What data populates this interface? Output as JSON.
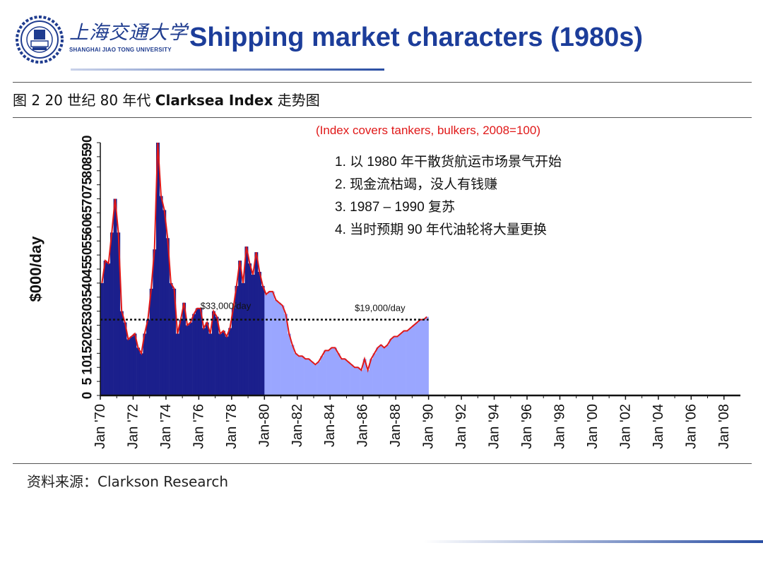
{
  "header": {
    "university_cn": "上海交通大学",
    "university_en": "SHANGHAI JIAO TONG UNIVERSITY",
    "title": "Shipping market characters (1980s)"
  },
  "figure": {
    "caption_prefix": "图 2 20 世纪 80 年代 ",
    "caption_bold": "Clarksea Index",
    "caption_suffix": " 走势图",
    "source": "资料来源：Clarkson Research"
  },
  "chart_data": {
    "type": "bar",
    "subtitle": "(Index covers tankers, bulkers, 2008=100)",
    "ylabel": "$000/day",
    "ylim": [
      0,
      90
    ],
    "yticks": [
      0,
      5,
      10,
      15,
      20,
      25,
      30,
      35,
      40,
      45,
      50,
      55,
      60,
      65,
      70,
      75,
      80,
      85,
      90
    ],
    "xlim": [
      1970,
      2009
    ],
    "xtick_labels": [
      "Jan '70",
      "Jan '72",
      "Jan '74",
      "Jan '76",
      "Jan '78",
      "Jan-80",
      "Jan-82",
      "Jan-84",
      "Jan-86",
      "Jan-88",
      "Jan '90",
      "Jan '92",
      "Jan '94",
      "Jan '96",
      "Jan '98",
      "Jan '00",
      "Jan '02",
      "Jan '04",
      "Jan '06",
      "Jan '08"
    ],
    "xtick_years": [
      1970,
      1972,
      1974,
      1976,
      1978,
      1980,
      1982,
      1984,
      1986,
      1988,
      1990,
      1992,
      1994,
      1996,
      1998,
      2000,
      2002,
      2004,
      2006,
      2008
    ],
    "reference_value": 27,
    "reference_labels": [
      "$33,000/day",
      "$19,000/day"
    ],
    "series": [
      {
        "color": "#1b1f8c",
        "x": [
          1970.0,
          1970.2,
          1970.4,
          1970.6,
          1970.8,
          1971.0,
          1971.2,
          1971.4,
          1971.6,
          1971.8,
          1972.0,
          1972.2,
          1972.4,
          1972.6,
          1972.8,
          1973.0,
          1973.2,
          1973.4,
          1973.6,
          1973.8,
          1974.0,
          1974.2,
          1974.4,
          1974.6,
          1974.8,
          1975.0,
          1975.2,
          1975.4,
          1975.6,
          1975.8,
          1976.0,
          1976.2,
          1976.4,
          1976.6,
          1976.8,
          1977.0,
          1977.2,
          1977.4,
          1977.6,
          1977.8,
          1978.0,
          1978.2,
          1978.4,
          1978.6,
          1978.8,
          1979.0,
          1979.2,
          1979.4,
          1979.6,
          1979.8
        ],
        "values": [
          40,
          48,
          47,
          58,
          70,
          58,
          30,
          26,
          20,
          21,
          22,
          17,
          15,
          22,
          27,
          38,
          52,
          90,
          71,
          66,
          56,
          40,
          38,
          22,
          27,
          33,
          25,
          26,
          29,
          31,
          31,
          24,
          26,
          22,
          30,
          28,
          22,
          23,
          21,
          24,
          31,
          39,
          48,
          40,
          53,
          47,
          43,
          51,
          44,
          39
        ]
      },
      {
        "color": "#9aa6ff",
        "x": [
          1980.0,
          1980.2,
          1980.4,
          1980.6,
          1980.8,
          1981.0,
          1981.2,
          1981.4,
          1981.6,
          1981.8,
          1982.0,
          1982.2,
          1982.4,
          1982.6,
          1982.8,
          1983.0,
          1983.2,
          1983.4,
          1983.6,
          1983.8,
          1984.0,
          1984.2,
          1984.4,
          1984.6,
          1984.8,
          1985.0,
          1985.2,
          1985.4,
          1985.6,
          1985.8,
          1986.0,
          1986.2,
          1986.4,
          1986.6,
          1986.8,
          1987.0,
          1987.2,
          1987.4,
          1987.6,
          1987.8,
          1988.0,
          1988.2,
          1988.4,
          1988.6,
          1988.8,
          1989.0,
          1989.2,
          1989.4,
          1989.6,
          1989.8
        ],
        "values": [
          36,
          37,
          37,
          34,
          33,
          32,
          29,
          22,
          18,
          15,
          14,
          14,
          13,
          13,
          12,
          11,
          12,
          14,
          16,
          16,
          17,
          17,
          15,
          13,
          13,
          12,
          11,
          10,
          10,
          9,
          13,
          9,
          13,
          15,
          17,
          18,
          17,
          18,
          20,
          21,
          21,
          22,
          23,
          23,
          24,
          25,
          26,
          27,
          27,
          28
        ]
      }
    ],
    "line_color": "#e01818",
    "annotations": [
      "1.  以 1980 年干散货航运市场景气开始",
      "2.  现金流枯竭，没人有钱赚",
      "3.  1987 – 1990 复苏",
      "4.  当时预期 90 年代油轮将大量更换"
    ]
  }
}
